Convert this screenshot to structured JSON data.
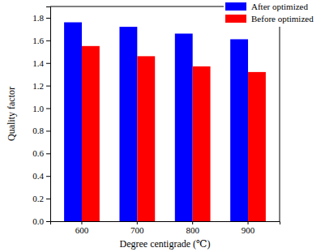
{
  "chart_data": {
    "type": "bar",
    "x_label": "Degree centigrade (℃)",
    "y_label": "Quality factor",
    "categories": [
      "600",
      "700",
      "800",
      "900"
    ],
    "series": [
      {
        "name": "After optimized",
        "color": "#0000ff",
        "values": [
          1.76,
          1.72,
          1.66,
          1.61
        ]
      },
      {
        "name": "Before optimized",
        "color": "#ff0000",
        "values": [
          1.55,
          1.46,
          1.37,
          1.32
        ]
      }
    ],
    "ylim": [
      0,
      1.9
    ],
    "yticks": [
      {
        "value": 0,
        "label": "0.0"
      },
      {
        "value": 0.2,
        "label": "0.2"
      },
      {
        "value": 0.4,
        "label": "0.4"
      },
      {
        "value": 0.6,
        "label": "0.6"
      },
      {
        "value": 0.8,
        "label": "0.8"
      },
      {
        "value": 1,
        "label": "1.0"
      },
      {
        "value": 1.2,
        "label": "1.2"
      },
      {
        "value": 1.4,
        "label": "1.4"
      },
      {
        "value": 1.6,
        "label": "1.6"
      },
      {
        "value": 1.8,
        "label": "1.8"
      }
    ],
    "legend": "top-right",
    "grid": false
  }
}
